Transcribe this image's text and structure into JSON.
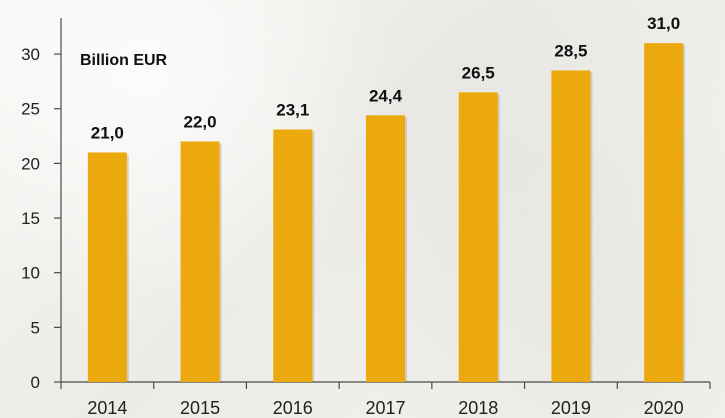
{
  "chart_data": {
    "type": "bar",
    "title": "",
    "subtitle": "",
    "unit_label": "Billion EUR",
    "xlabel": "",
    "ylabel": "",
    "categories": [
      "2014",
      "2015",
      "2016",
      "2017",
      "2018",
      "2019",
      "2020"
    ],
    "values": [
      21.0,
      22.0,
      23.1,
      24.4,
      26.5,
      28.5,
      31.0
    ],
    "value_labels": [
      "21,0",
      "22,0",
      "23,1",
      "24,4",
      "26,5",
      "28,5",
      "31,0"
    ],
    "y_ticks": [
      0,
      5,
      10,
      15,
      20,
      25,
      30
    ],
    "y_tick_labels": [
      "0",
      "5",
      "10",
      "15",
      "20",
      "25",
      "30"
    ],
    "ylim": [
      0,
      33.3
    ],
    "grid": false,
    "legend": "none",
    "colors": {
      "bar": "#eca90d",
      "axis": "#4a4a4a",
      "text": "#111111",
      "background": "#f3f2ef"
    }
  }
}
